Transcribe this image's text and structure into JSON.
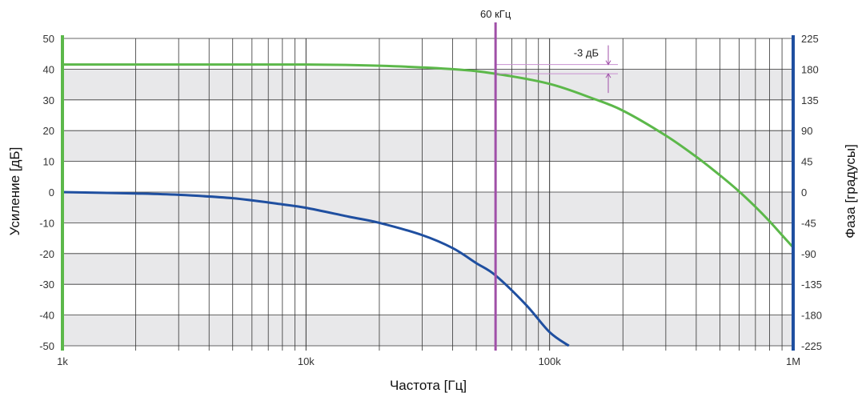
{
  "chart_data": {
    "type": "line",
    "title": "",
    "xlabel": "Частота [Гц]",
    "ylabel_left": "Усиление [дБ]",
    "ylabel_right": "Фаза [градусы]",
    "x_scale": "log",
    "xlim": [
      1000,
      1000000
    ],
    "ylim_left": [
      -50,
      50
    ],
    "ylim_right": [
      -225,
      225
    ],
    "x_ticks": [
      {
        "value": 1000,
        "label": "1k"
      },
      {
        "value": 10000,
        "label": "10k"
      },
      {
        "value": 100000,
        "label": "100k"
      },
      {
        "value": 1000000,
        "label": "1M"
      }
    ],
    "y_ticks_left": [
      "50",
      "40",
      "30",
      "20",
      "10",
      "0",
      "-10",
      "-20",
      "-30",
      "-40",
      "-50"
    ],
    "y_ticks_right": [
      "225",
      "180",
      "135",
      "90",
      "45",
      "0",
      "-45",
      "-90",
      "-135",
      "-180",
      "-225"
    ],
    "grid": true,
    "banded_background": true,
    "series": [
      {
        "axis": "left",
        "color": "#5cb84a",
        "x": [
          1000,
          3000,
          10000,
          20000,
          40000,
          60000,
          100000,
          150000,
          200000,
          300000,
          400000,
          500000,
          600000,
          700000,
          800000,
          900000,
          1000000
        ],
        "values": [
          41.5,
          41.5,
          41.5,
          41.1,
          40.0,
          38.5,
          35.2,
          30.5,
          26.5,
          18.4,
          11.5,
          5.5,
          0.2,
          -4.8,
          -9.5,
          -14.0,
          -18.0
        ]
      },
      {
        "axis": "right",
        "color": "#1f4fa0",
        "x": [
          1000,
          2000,
          3000,
          5000,
          8000,
          10000,
          15000,
          20000,
          30000,
          40000,
          50000,
          60000,
          80000,
          100000,
          120000
        ],
        "values": [
          0,
          -2,
          -4,
          -9,
          -18,
          -23,
          -36,
          -45,
          -63,
          -82,
          -104,
          -122,
          -165,
          -205,
          -225
        ]
      }
    ],
    "annotations": [
      {
        "type": "vline",
        "x": 60000,
        "label": "60 кГц",
        "color": "#a050a8"
      },
      {
        "type": "hline",
        "y": 41.5,
        "color": "#c890d0"
      },
      {
        "type": "hline",
        "y": 38.5,
        "color": "#c890d0"
      },
      {
        "type": "dimension",
        "label": "-3 дБ",
        "color": "#a050a8"
      }
    ],
    "colors": {
      "gain_axis": "#5cb84a",
      "phase_axis": "#1f4fa0",
      "marker": "#a050a8",
      "band": "#e8e8ea",
      "grid": "#333333"
    }
  }
}
